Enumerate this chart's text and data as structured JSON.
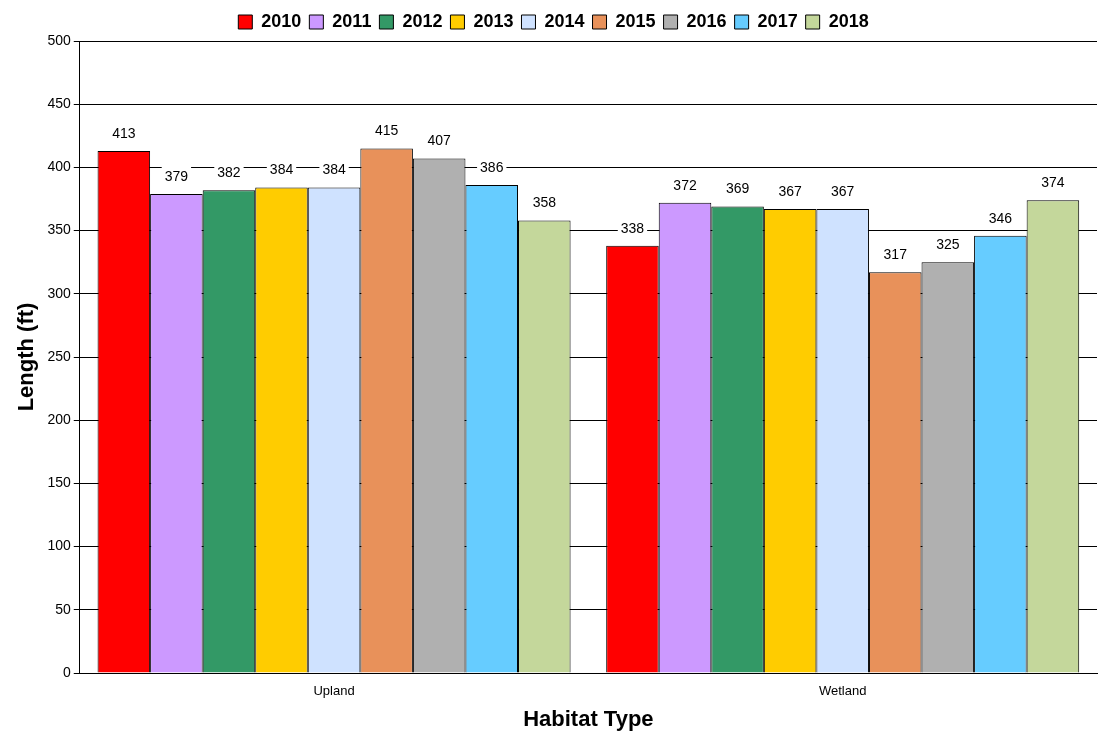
{
  "chart_data": {
    "type": "bar",
    "xlabel": "Habitat Type",
    "ylabel": "Length (ft)",
    "categories": [
      "Upland",
      "Wetland"
    ],
    "series": [
      {
        "name": "2010",
        "color": "#ff0000",
        "values": [
          413,
          338
        ]
      },
      {
        "name": "2011",
        "color": "#cc99ff",
        "values": [
          379,
          372
        ]
      },
      {
        "name": "2012",
        "color": "#339966",
        "values": [
          382,
          369
        ]
      },
      {
        "name": "2013",
        "color": "#ffcc00",
        "values": [
          384,
          367
        ]
      },
      {
        "name": "2014",
        "color": "#cfe2ff",
        "values": [
          384,
          367
        ]
      },
      {
        "name": "2015",
        "color": "#e8915a",
        "values": [
          415,
          317
        ]
      },
      {
        "name": "2016",
        "color": "#b0b0b0",
        "values": [
          407,
          325
        ]
      },
      {
        "name": "2017",
        "color": "#66ccff",
        "values": [
          386,
          346
        ]
      },
      {
        "name": "2018",
        "color": "#c4d79b",
        "values": [
          358,
          374
        ]
      }
    ],
    "ylim": [
      0,
      500
    ],
    "yticks": [
      0,
      50,
      100,
      150,
      200,
      250,
      300,
      350,
      400,
      450,
      500
    ],
    "grid": "y",
    "legend": "top",
    "data_labels": true
  }
}
